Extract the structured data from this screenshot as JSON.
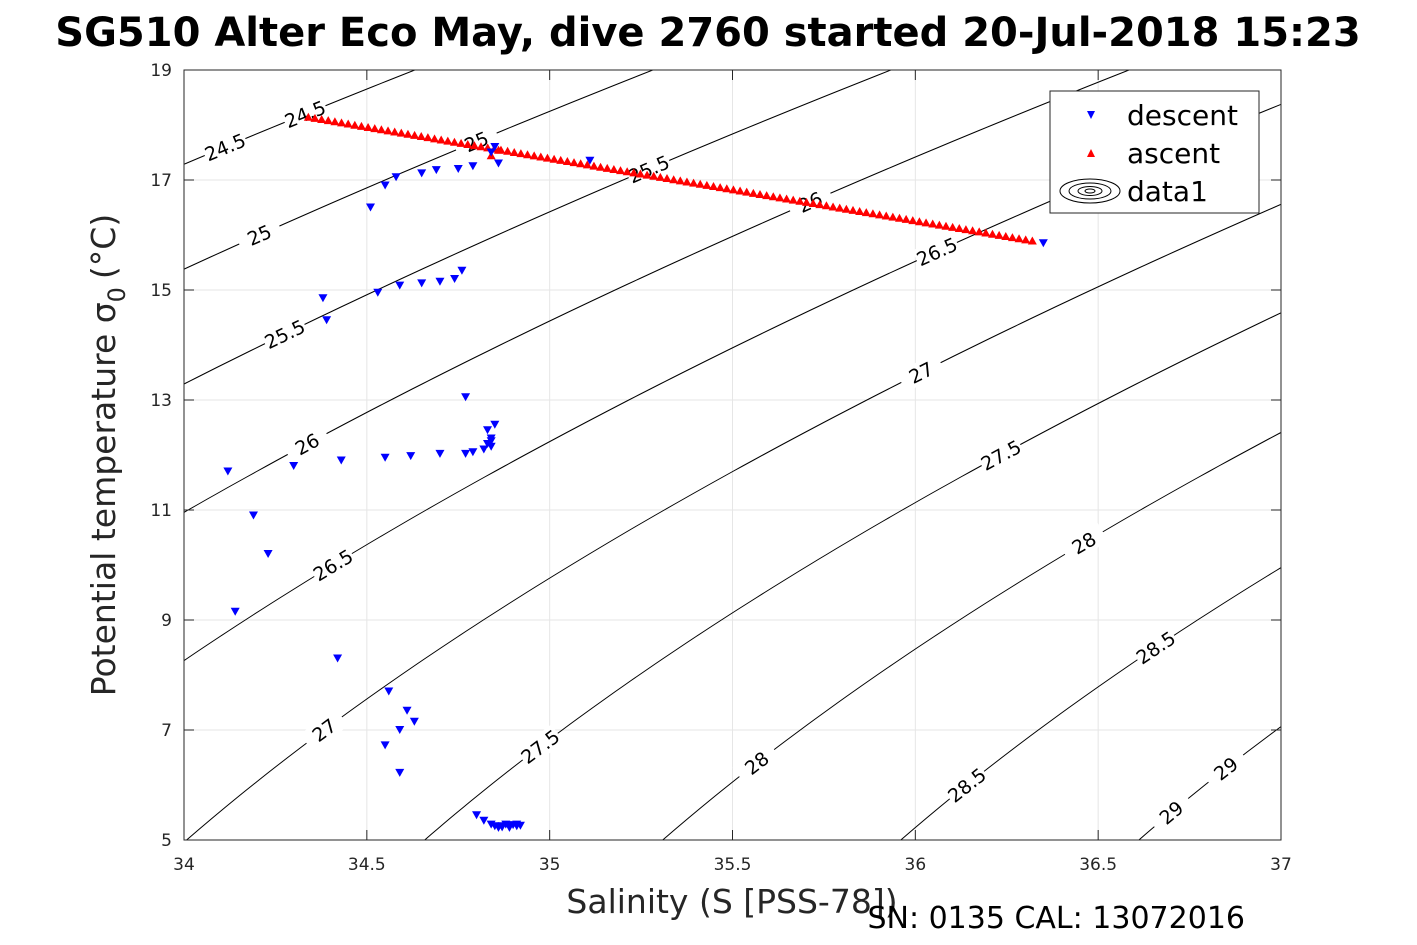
{
  "chart_data": {
    "type": "scatter",
    "title": "SG510 Alter Eco May, dive 2760 started 20-Jul-2018 15:23",
    "xlabel": "Salinity (S [PSS-78])",
    "ylabel_main": "Potential temperature σ",
    "ylabel_sub": "0",
    "ylabel_unit": "(°C)",
    "xlim": [
      34,
      37
    ],
    "ylim": [
      5,
      19
    ],
    "xticks": [
      "34",
      "34.5",
      "35",
      "35.5",
      "36",
      "36.5",
      "37"
    ],
    "yticks": [
      "5",
      "7",
      "9",
      "11",
      "13",
      "15",
      "17",
      "19"
    ],
    "grid": true,
    "legend_position": "top-right",
    "footer": "SN: 0135  CAL: 13072016",
    "series": [
      {
        "name": "descent",
        "marker": "triangle-down",
        "color": "#0000ff",
        "points": [
          [
            34.12,
            11.7
          ],
          [
            34.19,
            10.9
          ],
          [
            34.23,
            10.2
          ],
          [
            34.14,
            9.15
          ],
          [
            34.3,
            11.8
          ],
          [
            34.43,
            11.9
          ],
          [
            34.55,
            11.95
          ],
          [
            34.62,
            11.98
          ],
          [
            34.7,
            12.02
          ],
          [
            34.77,
            12.02
          ],
          [
            34.79,
            12.05
          ],
          [
            34.82,
            12.1
          ],
          [
            34.83,
            12.2
          ],
          [
            34.84,
            12.3
          ],
          [
            34.83,
            12.45
          ],
          [
            34.85,
            12.55
          ],
          [
            34.77,
            13.05
          ],
          [
            34.84,
            12.25
          ],
          [
            34.84,
            12.15
          ],
          [
            34.38,
            14.85
          ],
          [
            34.39,
            14.45
          ],
          [
            34.53,
            14.95
          ],
          [
            34.59,
            15.08
          ],
          [
            34.65,
            15.12
          ],
          [
            34.7,
            15.15
          ],
          [
            34.74,
            15.2
          ],
          [
            34.76,
            15.35
          ],
          [
            34.51,
            16.5
          ],
          [
            34.55,
            16.9
          ],
          [
            34.58,
            17.05
          ],
          [
            34.65,
            17.12
          ],
          [
            34.69,
            17.18
          ],
          [
            34.75,
            17.2
          ],
          [
            34.79,
            17.25
          ],
          [
            34.86,
            17.3
          ],
          [
            35.11,
            17.35
          ],
          [
            36.35,
            15.85
          ],
          [
            34.84,
            17.5
          ],
          [
            34.85,
            17.6
          ],
          [
            34.42,
            8.3
          ],
          [
            34.56,
            7.7
          ],
          [
            34.61,
            7.35
          ],
          [
            34.63,
            7.15
          ],
          [
            34.59,
            7.0
          ],
          [
            34.55,
            6.72
          ],
          [
            34.59,
            6.22
          ],
          [
            34.8,
            5.45
          ],
          [
            34.82,
            5.35
          ],
          [
            34.84,
            5.28
          ],
          [
            34.85,
            5.25
          ],
          [
            34.86,
            5.22
          ],
          [
            34.87,
            5.25
          ],
          [
            34.88,
            5.28
          ],
          [
            34.89,
            5.25
          ],
          [
            34.9,
            5.27
          ],
          [
            34.91,
            5.25
          ],
          [
            34.92,
            5.26
          ],
          [
            34.87,
            5.23
          ],
          [
            34.89,
            5.22
          ],
          [
            34.91,
            5.28
          ]
        ]
      },
      {
        "name": "ascent",
        "marker": "triangle-up",
        "color": "#ff0000",
        "line_from": [
          34.34,
          18.15
        ],
        "line_to": [
          36.32,
          15.9
        ],
        "count": 110,
        "extra_points": [
          [
            34.84,
            17.45
          ],
          [
            34.86,
            17.55
          ]
        ]
      },
      {
        "name": "data1",
        "marker": "contour",
        "color": "#000000",
        "description": "Potential density (sigma0) contours",
        "contour_levels": [
          {
            "value": 24.5,
            "label": "24.5"
          },
          {
            "value": 25,
            "label": "25"
          },
          {
            "value": 25.5,
            "label": "25.5"
          },
          {
            "value": 26,
            "label": "26"
          },
          {
            "value": 26.5,
            "label": "26.5"
          },
          {
            "value": 27,
            "label": "27"
          },
          {
            "value": 27.5,
            "label": "27.5"
          },
          {
            "value": 28,
            "label": "28"
          },
          {
            "value": 28.5,
            "label": "28.5"
          },
          {
            "value": 29,
            "label": "29"
          }
        ]
      }
    ]
  }
}
